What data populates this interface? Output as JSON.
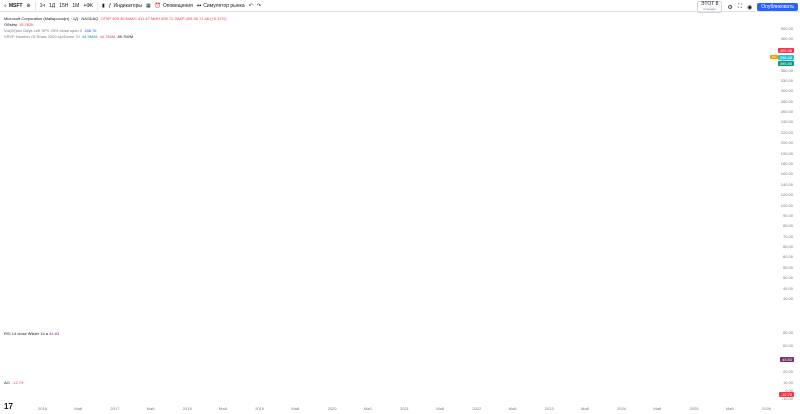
{
  "toolbar": {
    "symbol": "MSFT",
    "items": [
      "1ч",
      "1Д",
      "15Н",
      "1М",
      "+ФК",
      "Индикаторы",
      "Оповещения",
      "Симулятор рынка"
    ],
    "right_symbol": "ЭТОТ 8",
    "right_sub": "Стандарт",
    "publish": "Опубликовать"
  },
  "legend": {
    "line1_name": "Microsoft Corporation (Майкрософт) · 1Д · NASDAQ",
    "line1_values": "ОТКР 409.36  МАКС 411.47  МИН 405.72  ЗАКР 409.36 +1.46 (+0.37%)",
    "line2_name": "Объём",
    "line2_value": "15.282К",
    "line3_name": "Vol(20)rec Days Left  SPX 20% close span 0",
    "line3_value": "188.76",
    "line4_name": "VRVP Number Of Rows 2000 Up/Down 70",
    "line4_up": "44.9М/М",
    "line4_down": "44.7М/М",
    "line4_total": "89.7М/М"
  },
  "price_axis": [
    "500.00",
    "460.00",
    "420.00",
    "390.00",
    "360.00",
    "330.00",
    "300.00",
    "280.00",
    "260.00",
    "240.00",
    "220.00",
    "200.00",
    "190.00",
    "180.00",
    "160.00",
    "140.00",
    "120.00",
    "100.00",
    "90.00",
    "80.00",
    "70.00",
    "65.00",
    "60.00",
    "55.00",
    "50.00",
    "45.00",
    "40.00"
  ],
  "price_tags": {
    "last": "409.36",
    "ma": "398.48",
    "green": "395.85"
  },
  "rsi": {
    "label": "RSI 14 close Wilder 14 a",
    "value": "44.83",
    "axis": [
      "80.00",
      "60.00",
      "40.00",
      "20.00"
    ]
  },
  "ao": {
    "label": "AO",
    "value": "-12.79",
    "axis": [
      "10.00",
      "0.00",
      "-10.00"
    ]
  },
  "time_axis": [
    "2016",
    "Май",
    "2017",
    "Май",
    "2018",
    "Май",
    "2019",
    "Май",
    "2020",
    "Май",
    "2021",
    "Май",
    "2022",
    "Май",
    "2023",
    "Май",
    "2024",
    "Май",
    "2025",
    "Май",
    "2026"
  ],
  "earnings_marker": "E",
  "colors": {
    "up": "#089981",
    "down": "#f23645",
    "ma": "#22c4d6",
    "rsi": "#7e2a6e",
    "annotation": "#e01f2a",
    "accent": "#2962ff"
  },
  "icons": {
    "symbol_search": "search-icon",
    "compare": "plus-icon",
    "indicators": "fx-icon",
    "alerts": "alarm-icon",
    "replay": "replay-icon",
    "camera": "camera-icon"
  }
}
